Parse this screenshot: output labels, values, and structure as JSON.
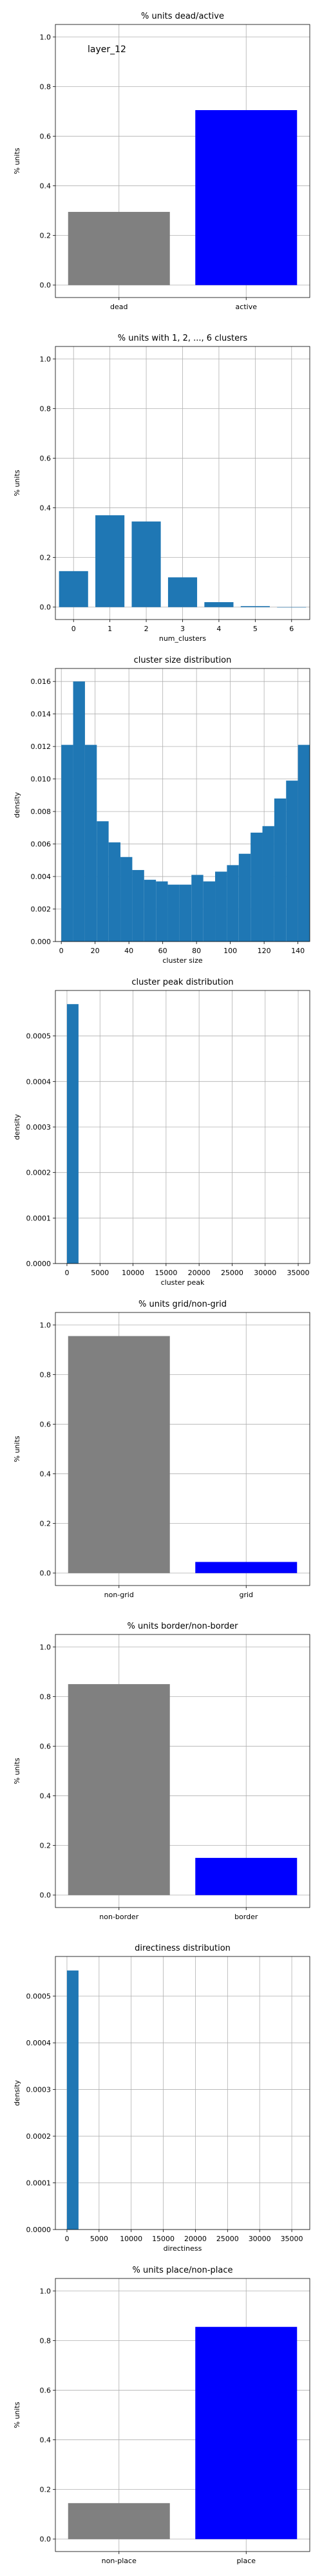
{
  "chart_data": [
    {
      "type": "bar",
      "title": "% units dead/active",
      "annotation": "layer_12",
      "xlabel": "",
      "ylabel": "% units",
      "categories": [
        "dead",
        "active"
      ],
      "values": [
        0.295,
        0.705
      ],
      "colors": [
        "#808080",
        "#0000ff"
      ],
      "ylim": [
        -0.05,
        1.05
      ],
      "yticks": [
        "0.0",
        "0.2",
        "0.4",
        "0.6",
        "0.8",
        "1.0"
      ],
      "grid": true
    },
    {
      "type": "bar",
      "title": "% units with 1, 2, ..., 6 clusters",
      "xlabel": "num_clusters",
      "ylabel": "% units",
      "categories": [
        "0",
        "1",
        "2",
        "3",
        "4",
        "5",
        "6"
      ],
      "values": [
        0.145,
        0.37,
        0.345,
        0.12,
        0.02,
        0.004,
        0.0
      ],
      "colors": [
        "#1f77b4"
      ],
      "ylim": [
        -0.05,
        1.05
      ],
      "yticks": [
        "0.0",
        "0.2",
        "0.4",
        "0.6",
        "0.8",
        "1.0"
      ],
      "grid": true
    },
    {
      "type": "histogram",
      "title": "cluster size distribution",
      "xlabel": "cluster size",
      "ylabel": "density",
      "x": [
        0,
        7,
        14,
        21,
        28,
        35,
        42,
        49,
        56,
        63,
        70,
        77,
        84,
        91,
        98,
        105,
        112,
        119,
        126,
        133,
        140
      ],
      "values": [
        0.0121,
        0.016,
        0.0121,
        0.0074,
        0.0061,
        0.0052,
        0.0044,
        0.0038,
        0.0037,
        0.0035,
        0.0035,
        0.0041,
        0.0037,
        0.0043,
        0.0047,
        0.0054,
        0.0067,
        0.0071,
        0.0088,
        0.0099,
        0.0121
      ],
      "bin_width": 7,
      "colors": [
        "#1f77b4"
      ],
      "xlim": [
        -3.5,
        147
      ],
      "ylim": [
        0,
        0.0168
      ],
      "xticks": [
        0,
        20,
        40,
        60,
        80,
        100,
        120,
        140
      ],
      "yticks": [
        "0.000",
        "0.002",
        "0.004",
        "0.006",
        "0.008",
        "0.010",
        "0.012",
        "0.014",
        "0.016"
      ],
      "grid": true
    },
    {
      "type": "histogram",
      "title": "cluster peak distribution",
      "xlabel": "cluster peak",
      "ylabel": "density",
      "x": [
        0,
        1750,
        3500,
        5250,
        7000,
        8750,
        10500,
        12250,
        14000,
        15750,
        17500,
        19250,
        21000,
        22750,
        24500,
        26250,
        28000,
        29750,
        31500,
        33250
      ],
      "values": [
        0.00057,
        0,
        0,
        0,
        0,
        0,
        0,
        0,
        0,
        0,
        0,
        0,
        0,
        0,
        0,
        0,
        0,
        0,
        0,
        0
      ],
      "bin_width": 1750,
      "colors": [
        "#1f77b4"
      ],
      "xlim": [
        -1750,
        36750
      ],
      "ylim": [
        0,
        0.0006
      ],
      "xticks": [
        0,
        5000,
        10000,
        15000,
        20000,
        25000,
        30000,
        35000
      ],
      "yticks": [
        "0.0000",
        "0.0001",
        "0.0002",
        "0.0003",
        "0.0004",
        "0.0005"
      ],
      "grid": true
    },
    {
      "type": "bar",
      "title": "% units grid/non-grid",
      "xlabel": "",
      "ylabel": "% units",
      "categories": [
        "non-grid",
        "grid"
      ],
      "values": [
        0.955,
        0.045
      ],
      "colors": [
        "#808080",
        "#0000ff"
      ],
      "ylim": [
        -0.05,
        1.05
      ],
      "yticks": [
        "0.0",
        "0.2",
        "0.4",
        "0.6",
        "0.8",
        "1.0"
      ],
      "grid": true
    },
    {
      "type": "bar",
      "title": "% units border/non-border",
      "xlabel": "",
      "ylabel": "% units",
      "categories": [
        "non-border",
        "border"
      ],
      "values": [
        0.85,
        0.15
      ],
      "colors": [
        "#808080",
        "#0000ff"
      ],
      "ylim": [
        -0.05,
        1.05
      ],
      "yticks": [
        "0.0",
        "0.2",
        "0.4",
        "0.6",
        "0.8",
        "1.0"
      ],
      "grid": true
    },
    {
      "type": "histogram",
      "title": "directiness distribution",
      "xlabel": "directiness",
      "ylabel": "density",
      "x": [
        0,
        1800,
        3600,
        5400,
        7200,
        9000,
        10800,
        12600,
        14400,
        16200,
        18000,
        19800,
        21600,
        23400,
        25200,
        27000,
        28800,
        30600,
        32400,
        34200
      ],
      "values": [
        0.000555,
        0,
        0,
        0,
        0,
        0,
        0,
        0,
        0,
        0,
        0,
        0,
        0,
        0,
        0,
        0,
        0,
        0,
        0,
        0
      ],
      "bin_width": 1800,
      "colors": [
        "#1f77b4"
      ],
      "xlim": [
        -1800,
        37800
      ],
      "ylim": [
        0,
        0.000585
      ],
      "xticks": [
        0,
        5000,
        10000,
        15000,
        20000,
        25000,
        30000,
        35000
      ],
      "yticks": [
        "0.0000",
        "0.0001",
        "0.0002",
        "0.0003",
        "0.0004",
        "0.0005"
      ],
      "grid": true
    },
    {
      "type": "bar",
      "title": "% units place/non-place",
      "xlabel": "",
      "ylabel": "% units",
      "categories": [
        "non-place",
        "place"
      ],
      "values": [
        0.145,
        0.855
      ],
      "colors": [
        "#808080",
        "#0000ff"
      ],
      "ylim": [
        -0.05,
        1.05
      ],
      "yticks": [
        "0.0",
        "0.2",
        "0.4",
        "0.6",
        "0.8",
        "1.0"
      ],
      "grid": true
    }
  ]
}
